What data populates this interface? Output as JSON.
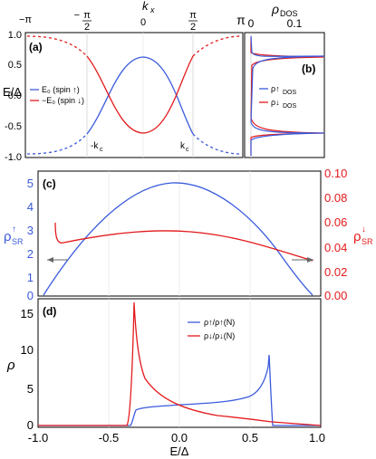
{
  "colors": {
    "spin_up": "#3a5bdc",
    "spin_down": "#e31a1c",
    "axis": "#000000",
    "grid": "#c8c8c8"
  },
  "chart_data": [
    {
      "panel": "(a)",
      "type": "line",
      "xlabel": "k_x",
      "ylabel": "E/Δ",
      "xlim": [
        -3.1416,
        3.1416
      ],
      "ylim": [
        -1.05,
        1.05
      ],
      "x_ticks": [
        "−π",
        "−π/2",
        "0",
        "π/2",
        "π"
      ],
      "y_ticks": [
        "1.0",
        "0.5",
        "0.0",
        "-0.5",
        "-1.0"
      ],
      "annotations": [
        "-k_c",
        "k_c"
      ],
      "legend_position": "center-left",
      "series": [
        {
          "name": "E_0 (spin ↑)",
          "x": [
            -1.57,
            -1.2,
            -0.8,
            -0.4,
            0,
            0.4,
            0.8,
            1.2,
            1.57
          ],
          "y": [
            -0.6,
            -0.35,
            -0.0,
            0.4,
            0.62,
            0.4,
            -0.0,
            -0.35,
            -0.6
          ]
        },
        {
          "name": "−E_0 (spin ↓)",
          "x": [
            -1.57,
            -1.2,
            -0.8,
            -0.4,
            0,
            0.4,
            0.8,
            1.2,
            1.57
          ],
          "y": [
            0.6,
            0.35,
            0.0,
            -0.4,
            -0.62,
            -0.4,
            0.0,
            0.35,
            0.6
          ]
        }
      ]
    },
    {
      "panel": "(b)",
      "type": "line",
      "xlabel": "ρ_DOS",
      "ylim": [
        -1.05,
        1.05
      ],
      "xlim": [
        0,
        0.13
      ],
      "x_ticks": [
        "0",
        "0.1"
      ],
      "legend_position": "center-right",
      "series": [
        {
          "name": "ρ↑_DOS",
          "peak_energies": [
            -0.62,
            0.62
          ]
        },
        {
          "name": "ρ↓_DOS",
          "peak_energies": [
            -0.62,
            0.62
          ]
        }
      ]
    },
    {
      "panel": "(c)",
      "type": "line",
      "xlim": [
        -1.0,
        1.0
      ],
      "ylabel": "ρ↑_SR",
      "ylabel_right": "ρ↓_SR",
      "ylim": [
        0,
        5.3
      ],
      "ylim_right": [
        0,
        0.1
      ],
      "y_ticks": [
        "0",
        "1",
        "2",
        "3",
        "4",
        "5"
      ],
      "y_ticks_right": [
        "0.00",
        "0.02",
        "0.04",
        "0.06",
        "0.08",
        "0.10"
      ],
      "series": [
        {
          "name": "ρ↑_SR",
          "axis": "left",
          "x": [
            -0.9,
            -0.7,
            -0.5,
            -0.3,
            -0.1,
            0.0,
            0.1,
            0.3,
            0.5,
            0.7,
            0.9
          ],
          "y": [
            0.0,
            1.5,
            3.2,
            4.4,
            4.95,
            4.9,
            4.6,
            3.6,
            2.2,
            0.95,
            0.0
          ]
        },
        {
          "name": "ρ↓_SR",
          "axis": "right",
          "x": [
            -0.9,
            -0.87,
            -0.8,
            -0.6,
            -0.3,
            -0.2,
            0.0,
            0.3,
            0.6,
            0.8,
            0.9
          ],
          "y": [
            0.058,
            0.044,
            0.045,
            0.05,
            0.053,
            0.053,
            0.052,
            0.047,
            0.036,
            0.023,
            0.015
          ]
        }
      ]
    },
    {
      "panel": "(d)",
      "type": "line",
      "xlabel": "E/Δ",
      "ylabel": "ρ",
      "xlim": [
        -1.0,
        1.0
      ],
      "ylim": [
        0,
        17
      ],
      "x_ticks": [
        "-1.0",
        "-0.5",
        "0.0",
        "0.5",
        "1.0"
      ],
      "y_ticks": [
        "0",
        "5",
        "10",
        "15"
      ],
      "legend_position": "top-center",
      "series": [
        {
          "name": "ρ↑/ρ↑(N)",
          "x": [
            -1.0,
            -0.7,
            -0.63,
            -0.61,
            -0.55,
            -0.3,
            0.0,
            0.3,
            0.5,
            0.58,
            0.62,
            0.64,
            0.7,
            1.0
          ],
          "y": [
            0.0,
            0.0,
            0.3,
            1.6,
            2.1,
            2.4,
            2.6,
            2.9,
            3.6,
            5.0,
            11.2,
            1.0,
            0.0,
            0.0
          ]
        },
        {
          "name": "ρ↓/ρ↓(N)",
          "x": [
            -1.0,
            -0.7,
            -0.65,
            -0.62,
            -0.6,
            -0.55,
            -0.45,
            -0.3,
            -0.1,
            0.1,
            0.3,
            0.5,
            0.6,
            0.63,
            0.7,
            1.0
          ],
          "y": [
            0.0,
            0.0,
            0.6,
            16.2,
            9.5,
            5.6,
            4.0,
            3.0,
            2.3,
            1.8,
            1.5,
            1.3,
            1.0,
            0.3,
            0.0,
            0.0
          ]
        }
      ]
    }
  ],
  "text": {
    "top_xlabel": "k",
    "top_xlabel_sub": "x",
    "panel_a": "(a)",
    "panel_b": "(b)",
    "panel_c": "(c)",
    "panel_d": "(d)",
    "legend_a_up": "E₀ (spin ↑)",
    "legend_a_down": "−E₀ (spin ↓)",
    "neg_kc": "-k",
    "pos_kc": "k",
    "kc_sub": "c",
    "dos_label": "ρ",
    "dos_sub": "DOS",
    "legend_b_up": "ρ↑",
    "legend_b_down": "ρ↓",
    "legend_b_sub": "DOS",
    "legend_d_up": "ρ↑/ρ↑(N)",
    "legend_d_down": "ρ↓/ρ↓(N)",
    "ylabel_a": "E/Δ",
    "ylabel_c_left": "ρ",
    "ylabel_c_left_sub": "SR",
    "ylabel_c_left_sup": "↑",
    "ylabel_c_right": "ρ",
    "ylabel_c_right_sub": "SR",
    "ylabel_c_right_sup": "↓",
    "ylabel_d": "ρ",
    "xlabel_bottom": "E/Δ",
    "tick_minus_pi": "−π",
    "tick_minus_half_pi_num": "π",
    "tick_half_den": "2",
    "tick_zero": "0",
    "tick_pi": "π",
    "dos_tick_0": "0",
    "dos_tick_01": "0.1"
  }
}
